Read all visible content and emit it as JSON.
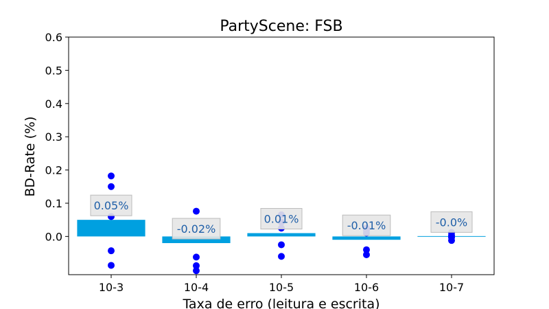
{
  "chart_data": {
    "type": "bar",
    "title": "PartyScene: FSB",
    "xlabel": "Taxa de erro (leitura e escrita)",
    "ylabel": "BD-Rate (%)",
    "ylim": [
      -0.115,
      0.6
    ],
    "yticks": [
      "0.0",
      "0.1",
      "0.2",
      "0.3",
      "0.4",
      "0.5",
      "0.6"
    ],
    "categories": [
      "10-3",
      "10-4",
      "10-5",
      "10-6",
      "10-7"
    ],
    "values": [
      0.05,
      -0.02,
      0.01,
      -0.01,
      0.0
    ],
    "data_labels": [
      "0.05%",
      "-0.02%",
      "0.01%",
      "-0.01%",
      "-0.0%"
    ],
    "points": [
      [
        0.182,
        0.15,
        0.06,
        -0.043,
        -0.087
      ],
      [
        0.076,
        -0.062,
        -0.088,
        -0.103
      ],
      [
        0.065,
        0.043,
        0.025,
        -0.025,
        -0.06
      ],
      [
        0.025,
        0.018,
        0.01,
        -0.04,
        -0.055
      ],
      [
        0.012,
        0.003,
        -0.003,
        -0.012
      ]
    ],
    "grid": false,
    "colors": {
      "bar": "#00a0e0",
      "point": "#0000ff",
      "label_box_fill": "#e6e6e6",
      "label_box_stroke": "#bbbbbb",
      "label_text": "#1f5fa8"
    }
  }
}
